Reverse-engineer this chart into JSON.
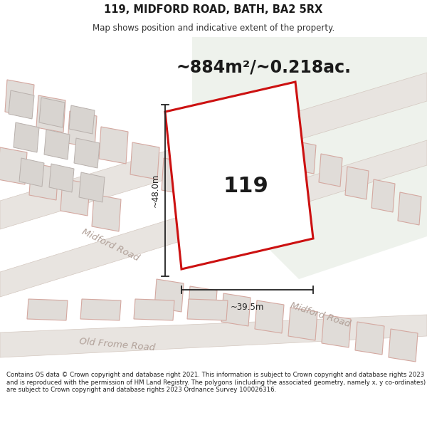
{
  "title_line1": "119, MIDFORD ROAD, BATH, BA2 5RX",
  "title_line2": "Map shows position and indicative extent of the property.",
  "area_text": "~884m²/~0.218ac.",
  "property_number": "119",
  "dim_vertical": "~48.0m",
  "dim_horizontal": "~39.5m",
  "road_label_upper": "Midford Road",
  "road_label_lower": "Midford Road",
  "road_label_old": "Old Frome Road",
  "footer_text": "Contains OS data © Crown copyright and database right 2021. This information is subject to Crown copyright and database rights 2023 and is reproduced with the permission of HM Land Registry. The polygons (including the associated geometry, namely x, y co-ordinates) are subject to Crown copyright and database rights 2023 Ordnance Survey 100026316.",
  "map_bg": "#f2f2f0",
  "green_area": "#eef2ec",
  "road_fill": "#e8e4e0",
  "road_edge": "#d4c8c0",
  "building_fill": "#e0dcd8",
  "building_edge": "#d4a8a0",
  "plot_fill": "#ffffff",
  "plot_edge": "#cc1111",
  "dim_color": "#222222",
  "text_dark": "#1a1a1a",
  "text_road": "#b8a8a4",
  "title_bg": "#ffffff",
  "footer_bg": "#ffffff"
}
